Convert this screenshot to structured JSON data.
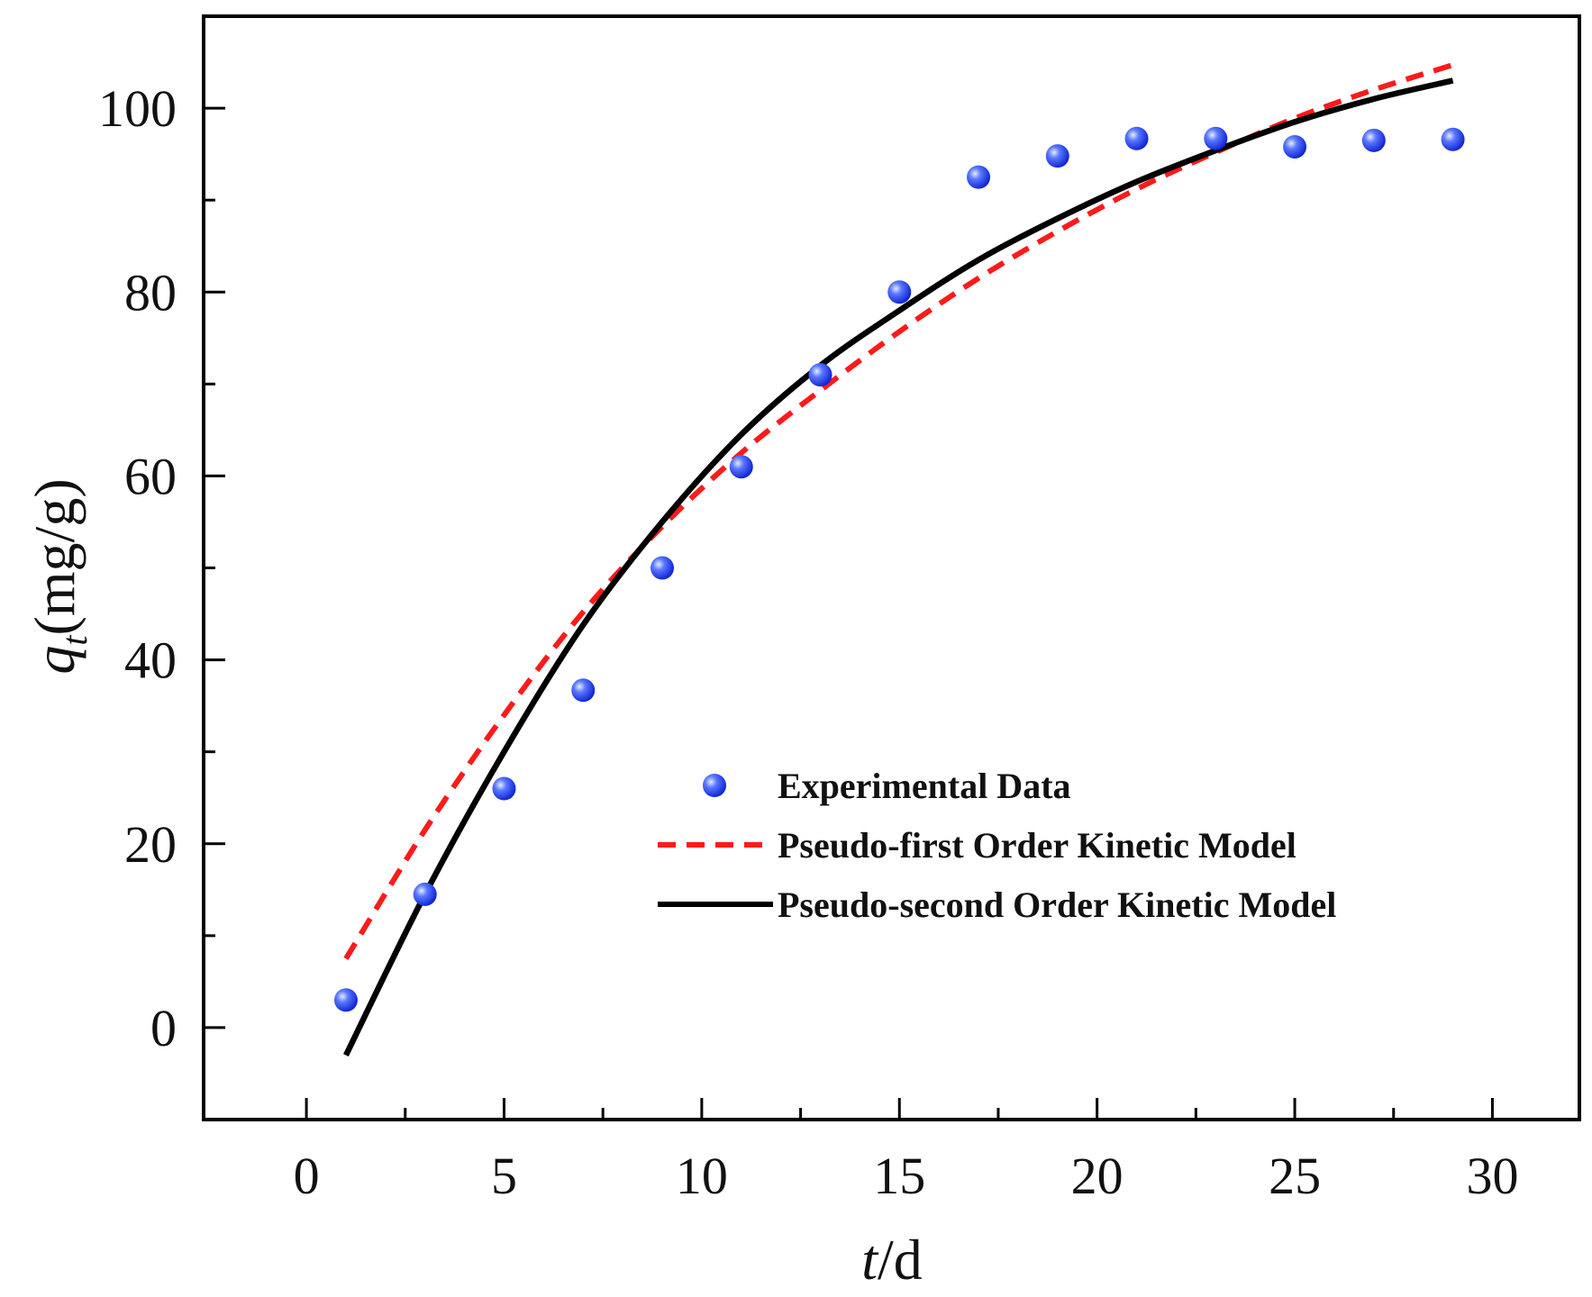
{
  "chart_data": {
    "type": "scatter",
    "title": "",
    "xlabel": {
      "italic": "t",
      "rest": "/d"
    },
    "ylabel": {
      "italic": "q",
      "sub": "t",
      "rest": "(mg/g)"
    },
    "xlim": [
      -2.6,
      32.2
    ],
    "ylim": [
      -10,
      110
    ],
    "xticks": [
      0,
      5,
      10,
      15,
      20,
      25,
      30
    ],
    "xtick_labels": [
      "0",
      "5",
      "10",
      "15",
      "20",
      "25",
      "30"
    ],
    "yticks": [
      0,
      20,
      40,
      60,
      80,
      100
    ],
    "ytick_labels": [
      "0",
      "20",
      "40",
      "60",
      "80",
      "100"
    ],
    "grid": false,
    "legend_position": "center-right",
    "series": [
      {
        "name": "Experimental Data",
        "kind": "scatter",
        "color": "#1f3ff0",
        "x": [
          1,
          3,
          5,
          7,
          9,
          11,
          13,
          15,
          17,
          19,
          21,
          23,
          25,
          27,
          29
        ],
        "y": [
          3,
          14.5,
          26,
          36.7,
          50,
          61,
          71,
          80,
          92.5,
          94.8,
          96.7,
          96.7,
          95.8,
          96.5,
          96.6
        ]
      },
      {
        "name": "Pseudo-first Order Kinetic Model",
        "kind": "line",
        "style": "dashed",
        "color": "#ff1a1a",
        "x": [
          1,
          3,
          5,
          7,
          9,
          11,
          13,
          15,
          17,
          19,
          21,
          23,
          25,
          27,
          29
        ],
        "y": [
          7.5,
          21.5,
          34,
          45.2,
          54.5,
          62.5,
          69.3,
          75.7,
          81.5,
          86.6,
          91.2,
          95.2,
          98.9,
          102,
          104.7
        ]
      },
      {
        "name": "Pseudo-second Order Kinetic Model",
        "kind": "line",
        "style": "solid",
        "color": "#000000",
        "x": [
          1,
          3,
          5,
          7,
          9,
          11,
          13,
          15,
          17,
          19,
          21,
          23,
          25,
          27,
          29
        ],
        "y": [
          -3,
          14.5,
          30,
          43.8,
          55,
          64.5,
          72,
          78,
          83.5,
          88,
          92,
          95.4,
          98.5,
          101,
          103
        ]
      }
    ]
  }
}
